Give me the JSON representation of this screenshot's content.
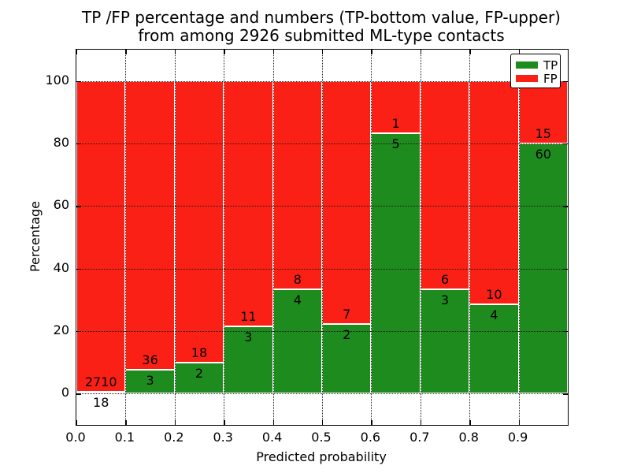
{
  "figure": {
    "title_line1": "TP /FP percentage and numbers (TP-bottom value, FP-upper)",
    "title_line2": "from among 2926 submitted ML-type contacts"
  },
  "chart_data": {
    "type": "bar",
    "stacked": true,
    "title": "TP /FP percentage and numbers (TP-bottom value, FP-upper) from among 2926 submitted ML-type contacts",
    "xlabel": "Predicted probability",
    "ylabel": "Percentage",
    "xlim": [
      0.0,
      1.0
    ],
    "ylim": [
      -10,
      110
    ],
    "grid": true,
    "x_tick_labels": [
      "0.0",
      "0.1",
      "0.2",
      "0.3",
      "0.4",
      "0.5",
      "0.6",
      "0.7",
      "0.8",
      "0.9"
    ],
    "y_tick_values": [
      0,
      20,
      40,
      60,
      80,
      100
    ],
    "colors": {
      "tp": "#1e8b1e",
      "fp": "#fb2015"
    },
    "legend": {
      "position": "upper right",
      "entries": [
        {
          "label": "TP",
          "color": "#1e8b1e"
        },
        {
          "label": "FP",
          "color": "#fb2015"
        }
      ]
    },
    "bins": [
      {
        "range": "0.0-0.1",
        "tp": 18,
        "fp": 2710,
        "tp_pct": 0.66,
        "fp_pct": 99.34
      },
      {
        "range": "0.1-0.2",
        "tp": 3,
        "fp": 36,
        "tp_pct": 7.69,
        "fp_pct": 92.31
      },
      {
        "range": "0.2-0.3",
        "tp": 2,
        "fp": 18,
        "tp_pct": 10.0,
        "fp_pct": 90.0
      },
      {
        "range": "0.3-0.4",
        "tp": 3,
        "fp": 11,
        "tp_pct": 21.43,
        "fp_pct": 78.57
      },
      {
        "range": "0.4-0.5",
        "tp": 4,
        "fp": 8,
        "tp_pct": 33.33,
        "fp_pct": 66.67
      },
      {
        "range": "0.5-0.6",
        "tp": 2,
        "fp": 7,
        "tp_pct": 22.22,
        "fp_pct": 77.78
      },
      {
        "range": "0.6-0.7",
        "tp": 5,
        "fp": 1,
        "tp_pct": 83.33,
        "fp_pct": 16.67
      },
      {
        "range": "0.7-0.8",
        "tp": 3,
        "fp": 6,
        "tp_pct": 33.33,
        "fp_pct": 66.67
      },
      {
        "range": "0.8-0.9",
        "tp": 4,
        "fp": 10,
        "tp_pct": 28.57,
        "fp_pct": 71.43
      },
      {
        "range": "0.9-1.0",
        "tp": 60,
        "fp": 15,
        "tp_pct": 80.0,
        "fp_pct": 20.0
      }
    ],
    "series": [
      {
        "name": "TP",
        "values": [
          0.66,
          7.69,
          10.0,
          21.43,
          33.33,
          22.22,
          83.33,
          33.33,
          28.57,
          80.0
        ]
      },
      {
        "name": "FP",
        "values": [
          99.34,
          92.31,
          90.0,
          78.57,
          66.67,
          77.78,
          16.67,
          66.67,
          71.43,
          20.0
        ]
      }
    ]
  }
}
